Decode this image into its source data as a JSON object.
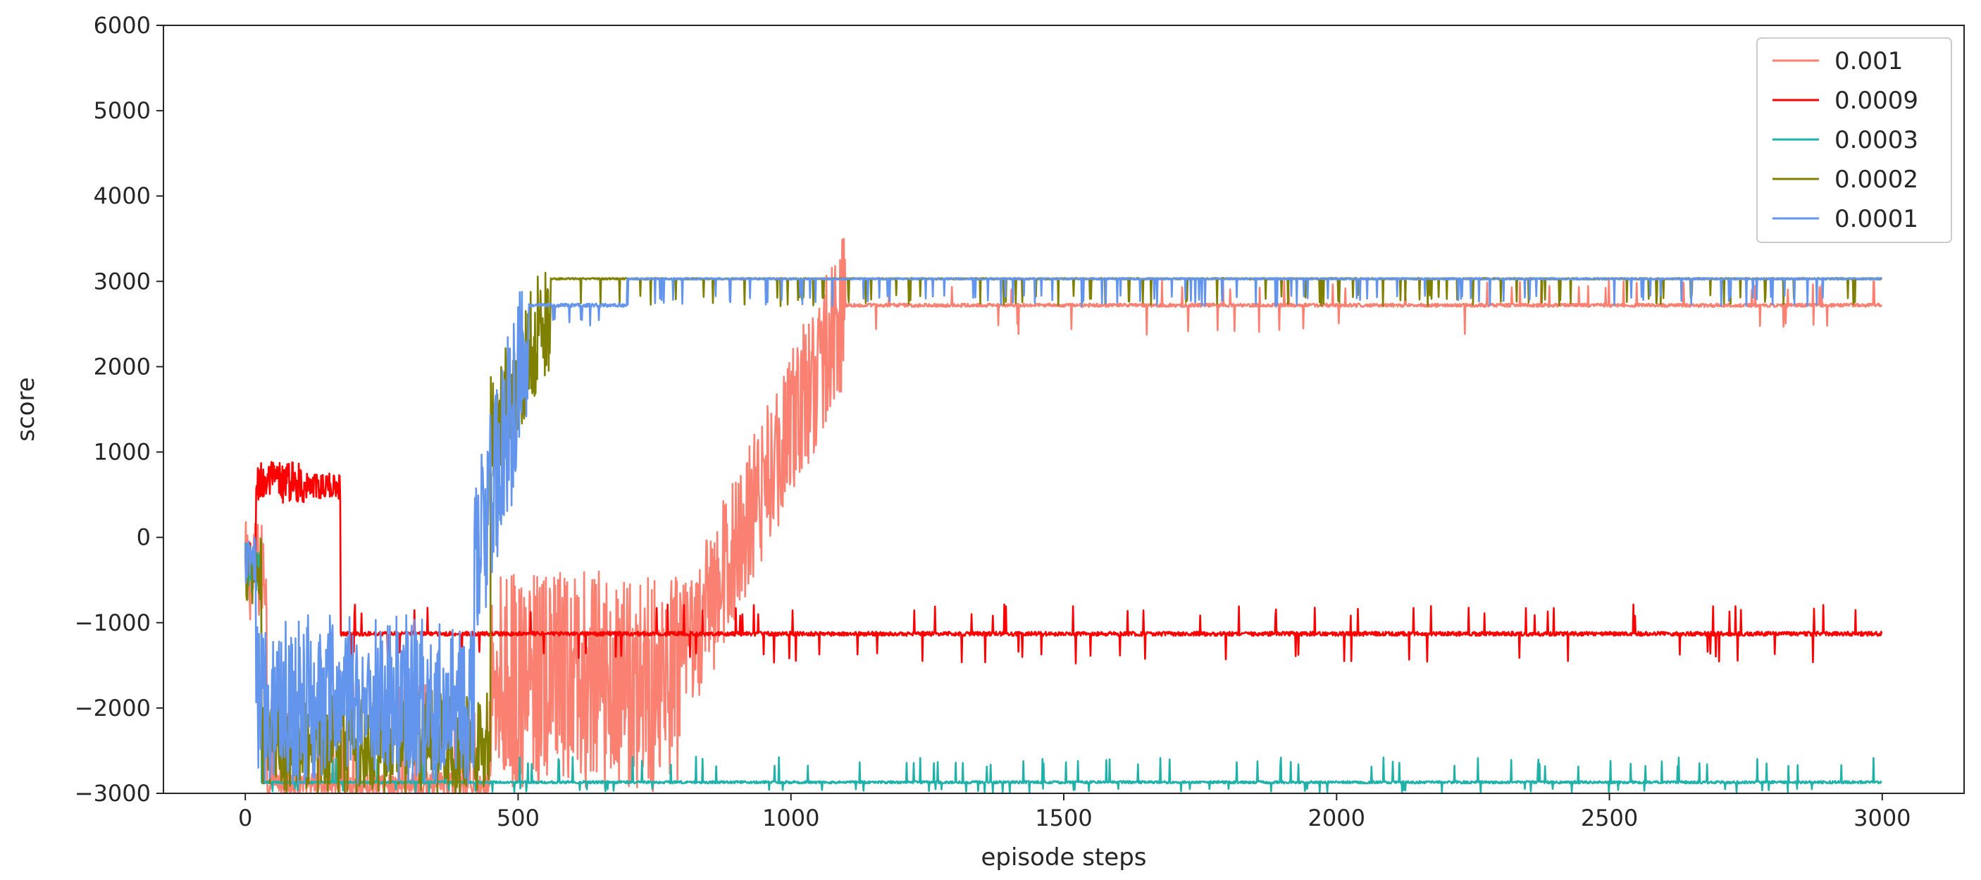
{
  "chart_data": {
    "type": "line",
    "title": "",
    "xlabel": "episode steps",
    "ylabel": "score",
    "xlim": [
      -150,
      3150
    ],
    "ylim": [
      -3000,
      6000
    ],
    "xticks": [
      0,
      500,
      1000,
      1500,
      2000,
      2500,
      3000
    ],
    "yticks": [
      -3000,
      -2000,
      -1000,
      0,
      1000,
      2000,
      3000,
      4000,
      5000,
      6000
    ],
    "xtick_labels": [
      "0",
      "500",
      "1000",
      "1500",
      "2000",
      "2500",
      "3000"
    ],
    "ytick_labels": [
      "−3000",
      "−2000",
      "−1000",
      "0",
      "1000",
      "2000",
      "3000",
      "4000",
      "5000",
      "6000"
    ],
    "grid": false,
    "legend_position": "top-right",
    "n_points": 3000,
    "series": [
      {
        "name": "0.001",
        "color": "#fa8072",
        "segments": [
          {
            "start": 0,
            "end": 40,
            "base": -400,
            "noise": 600
          },
          {
            "start": 40,
            "end": 450,
            "base": -2900,
            "noise": 150,
            "spike_up": 1200,
            "spike_prob": 0.08
          },
          {
            "start": 450,
            "end": 800,
            "base": -1700,
            "noise": 1300
          },
          {
            "start": 800,
            "end": 1100,
            "base_from": -1500,
            "base_to": 2700,
            "noise": 900
          },
          {
            "start": 1100,
            "end": 3000,
            "base": 2720,
            "noise": 20,
            "spike_up": 300,
            "spike_down": 350,
            "spike_prob": 0.03
          }
        ]
      },
      {
        "name": "0.0009",
        "color": "#ff0000",
        "segments": [
          {
            "start": 0,
            "end": 20,
            "base": -300,
            "noise": 250
          },
          {
            "start": 20,
            "end": 110,
            "base": 650,
            "noise": 250
          },
          {
            "start": 110,
            "end": 175,
            "base": 600,
            "noise": 150
          },
          {
            "start": 175,
            "end": 3000,
            "base": -1130,
            "noise": 25,
            "spike_up": 350,
            "spike_down": 350,
            "spike_prob": 0.035
          }
        ]
      },
      {
        "name": "0.0003",
        "color": "#20b2aa",
        "segments": [
          {
            "start": 0,
            "end": 30,
            "base": -350,
            "noise": 300
          },
          {
            "start": 30,
            "end": 3000,
            "base": -2870,
            "noise": 15,
            "spike_up": 300,
            "spike_down": 120,
            "spike_prob": 0.045
          }
        ]
      },
      {
        "name": "0.0002",
        "color": "#808000",
        "segments": [
          {
            "start": 0,
            "end": 30,
            "base": -400,
            "noise": 400
          },
          {
            "start": 30,
            "end": 450,
            "base": -2400,
            "noise": 600
          },
          {
            "start": 450,
            "end": 560,
            "base_from": 1200,
            "base_to": 2700,
            "noise": 700
          },
          {
            "start": 560,
            "end": 3000,
            "base": 3030,
            "noise": 10,
            "spike_down": 320,
            "spike_prob": 0.045
          }
        ]
      },
      {
        "name": "0.0001",
        "color": "#6495ed",
        "segments": [
          {
            "start": 0,
            "end": 20,
            "base": -300,
            "noise": 300
          },
          {
            "start": 20,
            "end": 420,
            "base": -1900,
            "noise": 1000
          },
          {
            "start": 420,
            "end": 520,
            "base_from": -500,
            "base_to": 2400,
            "noise": 1100
          },
          {
            "start": 520,
            "end": 700,
            "base": 2720,
            "noise": 20,
            "spike_down": 250,
            "spike_prob": 0.04
          },
          {
            "start": 700,
            "end": 3000,
            "base": 3030,
            "noise": 10,
            "spike_down": 320,
            "spike_prob": 0.05
          }
        ]
      }
    ]
  }
}
